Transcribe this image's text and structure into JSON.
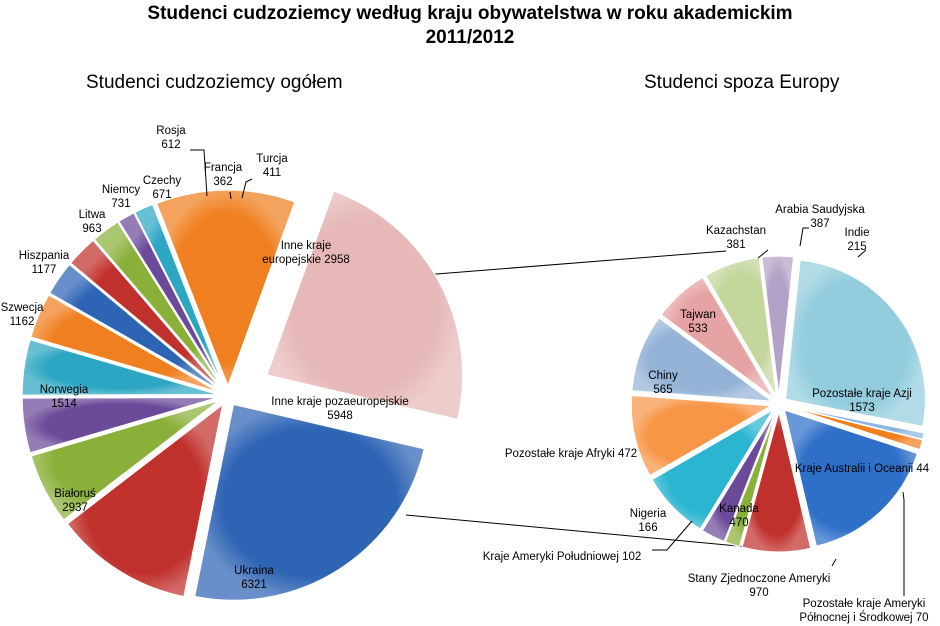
{
  "title_line1": "Studenci cudzoziemcy według kraju obywatelstwa w roku akademickim",
  "title_line2": "2011/2012",
  "chart_data": [
    {
      "type": "pie",
      "title": "Studenci cudzoziemcy  ogółem",
      "slices": [
        {
          "name": "Inne kraje pozaeuropejskie",
          "value": 5948,
          "color": "#E6B9B8"
        },
        {
          "name": "Ukraina",
          "value": 6321,
          "color": "#2E64B4"
        },
        {
          "name": "Białoruś",
          "value": 2937,
          "color": "#C0302C"
        },
        {
          "name": "Norwegia",
          "value": 1514,
          "color": "#8AB03A"
        },
        {
          "name": "Szwecja",
          "value": 1162,
          "color": "#6B4A9A"
        },
        {
          "name": "Hiszpania",
          "value": 1177,
          "color": "#2CA6C2"
        },
        {
          "name": "Litwa",
          "value": 963,
          "color": "#F07F1F"
        },
        {
          "name": "Niemcy",
          "value": 731,
          "color": "#2E64B4"
        },
        {
          "name": "Czechy",
          "value": 671,
          "color": "#C0302C"
        },
        {
          "name": "Rosja",
          "value": 612,
          "color": "#8AB03A"
        },
        {
          "name": "Francja",
          "value": 362,
          "color": "#6B4A9A"
        },
        {
          "name": "Turcja",
          "value": 411,
          "color": "#2CA6C2"
        },
        {
          "name": "Inne kraje europejskie",
          "value": 2958,
          "color": "#F07F1F"
        }
      ]
    },
    {
      "type": "pie",
      "title": "Studenci spoza  Europy",
      "slices": [
        {
          "name": "Pozostałe kraje Azji",
          "value": 1573,
          "color": "#93CDDD"
        },
        {
          "name": "Kraje Australii i Oceanii",
          "value": 44,
          "color": "#8DB4E2"
        },
        {
          "name": "Pozostałe kraje Ameryki Północnej i Środkowej",
          "value": 70,
          "color": "#F07F1F"
        },
        {
          "name": "Stany Zjednoczone Ameryki",
          "value": 970,
          "color": "#2E6FC8"
        },
        {
          "name": "Kanada",
          "value": 470,
          "color": "#C0302C"
        },
        {
          "name": "Kraje Ameryki Południowej",
          "value": 102,
          "color": "#8AB03A"
        },
        {
          "name": "Nigeria",
          "value": 166,
          "color": "#6B4A9A"
        },
        {
          "name": "Pozostałe kraje Afryki",
          "value": 472,
          "color": "#2CB5D0"
        },
        {
          "name": "Chiny",
          "value": 565,
          "color": "#F79646"
        },
        {
          "name": "Tajwan",
          "value": 533,
          "color": "#95B3D7"
        },
        {
          "name": "Kazachstan",
          "value": 381,
          "color": "#E6A3A3"
        },
        {
          "name": "Arabia Saudyjska",
          "value": 387,
          "color": "#C3D69B"
        },
        {
          "name": "Indie",
          "value": 215,
          "color": "#B3A2C7"
        }
      ]
    }
  ],
  "labels_left": [
    {
      "name": "Inne kraje pozaeuropejskie",
      "value": "5948"
    },
    {
      "name": "Ukraina",
      "value": "6321"
    },
    {
      "name": "Białoruś",
      "value": "2937"
    },
    {
      "name": "Norwegia",
      "value": "1514"
    },
    {
      "name": "Szwecja",
      "value": "1162"
    },
    {
      "name": "Hiszpania",
      "value": "1177"
    },
    {
      "name": "Litwa",
      "value": "963"
    },
    {
      "name": "Niemcy",
      "value": "731"
    },
    {
      "name": "Czechy",
      "value": "671"
    },
    {
      "name": "Rosja",
      "value": "612"
    },
    {
      "name": "Francja",
      "value": "362"
    },
    {
      "name": "Turcja",
      "value": "411"
    },
    {
      "name": "Inne kraje",
      "value": "europejskie 2958"
    }
  ],
  "labels_right": [
    {
      "name": "Pozostałe kraje Azji",
      "value": "1573"
    },
    {
      "name": "Kraje Australii i Oceanii 44",
      "value": ""
    },
    {
      "name": "Pozostałe kraje Ameryki",
      "value": "Północnej i Środkowej 70"
    },
    {
      "name": "Stany Zjednoczone Ameryki",
      "value": "970"
    },
    {
      "name": "Kanada",
      "value": "470"
    },
    {
      "name": "Kraje Ameryki Południowej 102",
      "value": ""
    },
    {
      "name": "Nigeria",
      "value": "166"
    },
    {
      "name": "Pozostałe kraje Afryki 472",
      "value": ""
    },
    {
      "name": "Chiny",
      "value": "565"
    },
    {
      "name": "Tajwan",
      "value": "533"
    },
    {
      "name": "Kazachstan",
      "value": "381"
    },
    {
      "name": "Arabia Saudyjska",
      "value": "387"
    },
    {
      "name": "Indie",
      "value": "215"
    }
  ]
}
